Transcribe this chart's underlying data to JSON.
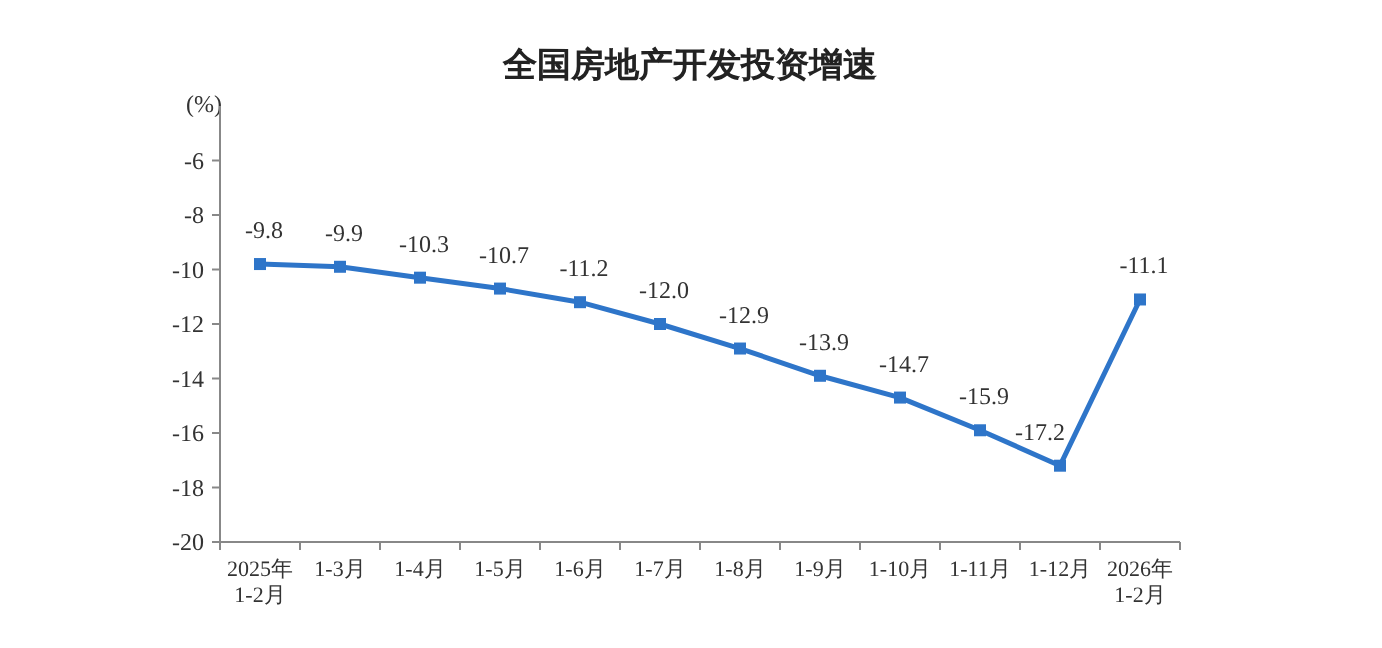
{
  "chart_data": {
    "type": "line",
    "title": "全国房地产开发投资增速",
    "ylabel": "(%)",
    "categories": [
      "2025年1-2月",
      "1-3月",
      "1-4月",
      "1-5月",
      "1-6月",
      "1-7月",
      "1-8月",
      "1-9月",
      "1-10月",
      "1-11月",
      "1-12月",
      "2026年1-2月"
    ],
    "series": [
      {
        "color": "#2e75c9",
        "values": [
          -9.8,
          -9.9,
          -10.3,
          -10.7,
          -11.2,
          -12.0,
          -12.9,
          -13.9,
          -14.7,
          -15.9,
          -17.2,
          -11.1
        ],
        "value_labels": [
          "-9.8",
          "-9.9",
          "-10.3",
          "-10.7",
          "-11.2",
          "-12.0",
          "-12.9",
          "-13.9",
          "-14.7",
          "-15.9",
          "-17.2",
          "-11.1"
        ]
      }
    ],
    "ylim": [
      -20,
      -4
    ],
    "yticks": [
      -20,
      -18,
      -16,
      -14,
      -12,
      -10,
      -8,
      -6
    ],
    "marker": "square",
    "grid": false,
    "line_style": "solid"
  }
}
